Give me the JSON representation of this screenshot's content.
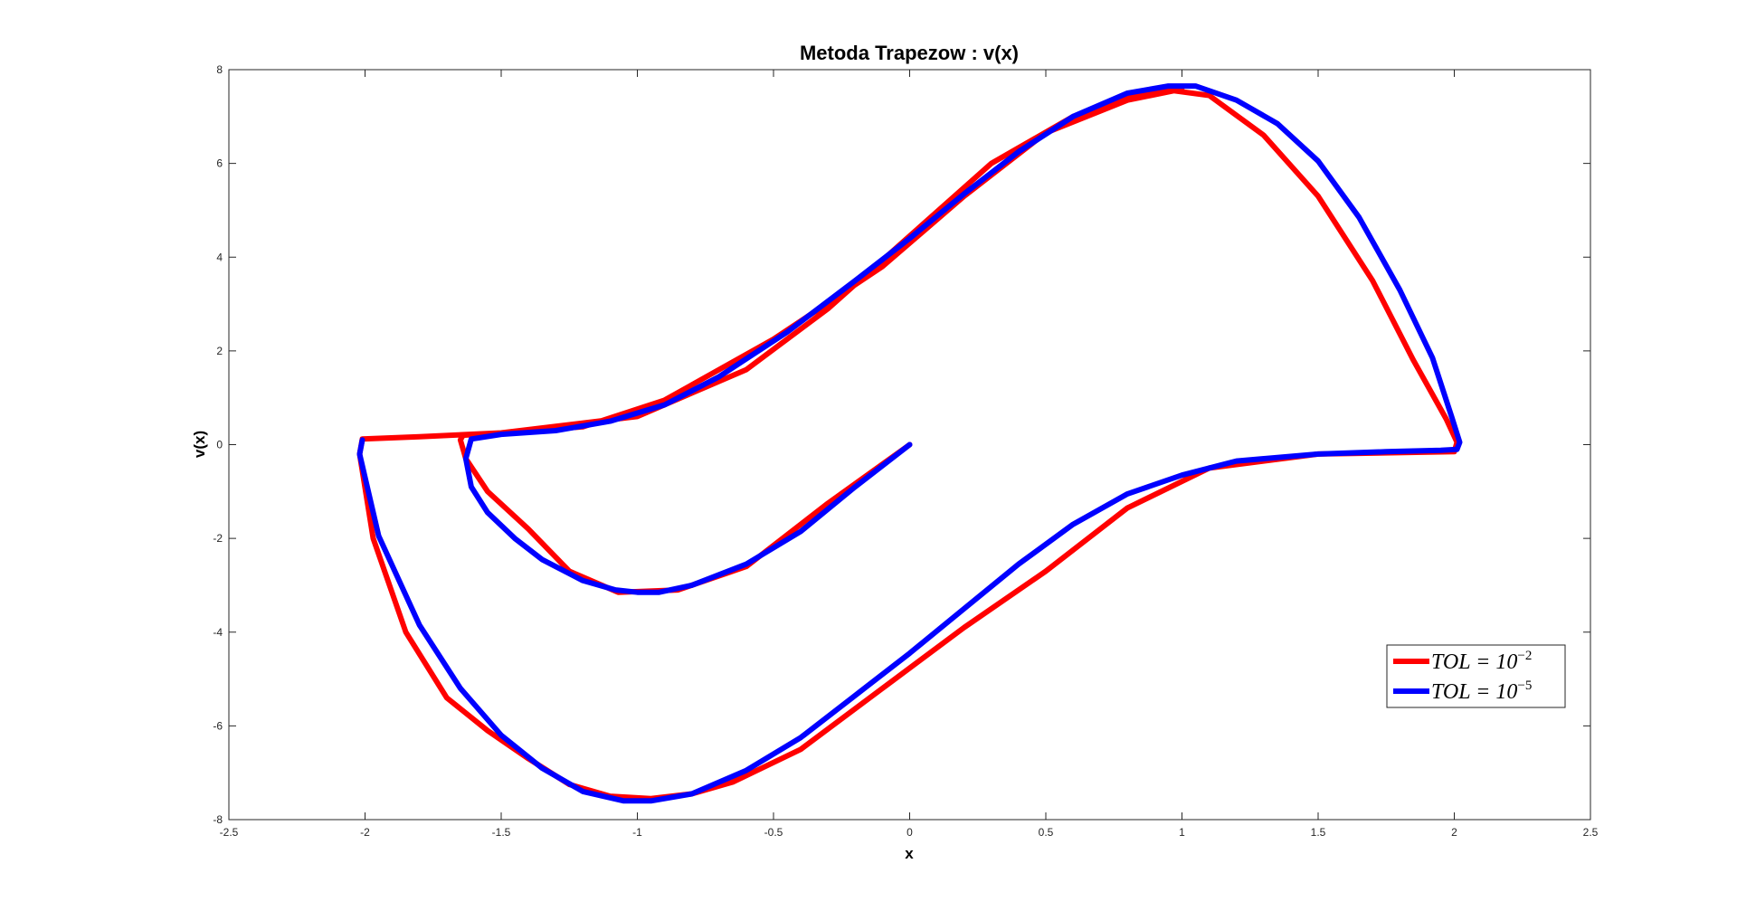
{
  "chart_data": {
    "type": "line",
    "title": "Metoda Trapezow : v(x)",
    "xlabel": "x",
    "ylabel": "v(x)",
    "xlim": [
      -2.5,
      2.5
    ],
    "ylim": [
      -8,
      8
    ],
    "xticks": [
      -2.5,
      -2,
      -1.5,
      -1,
      -0.5,
      0,
      0.5,
      1,
      1.5,
      2,
      2.5
    ],
    "xtick_labels": [
      "-2.5",
      "-2",
      "-1.5",
      "-1",
      "-0.5",
      "0",
      "0.5",
      "1",
      "1.5",
      "2",
      "2.5"
    ],
    "yticks": [
      -8,
      -6,
      -4,
      -2,
      0,
      2,
      4,
      6,
      8
    ],
    "ytick_labels": [
      "-8",
      "-6",
      "-4",
      "-2",
      "0",
      "2",
      "4",
      "6",
      "8"
    ],
    "grid": false,
    "legend_position": "bottom-right",
    "series": [
      {
        "name": "TOL = 10^-2",
        "legend_base": "TOL = 10",
        "legend_exp": "−2",
        "color": "#ff0000",
        "x": [
          0,
          -0.3,
          -0.6,
          -0.85,
          -1.07,
          -1.25,
          -1.4,
          -1.55,
          -1.63,
          -1.65,
          -1.64,
          -1.5,
          -1.2,
          -0.9,
          -0.5,
          -0.1,
          0.2,
          0.5,
          0.8,
          0.97,
          1.1,
          1.3,
          1.5,
          1.7,
          1.85,
          1.97,
          2.01,
          2.0,
          1.5,
          1.1,
          0.8,
          0.5,
          0.2,
          -0.1,
          -0.4,
          -0.65,
          -0.8,
          -0.95,
          -1.1,
          -1.25,
          -1.4,
          -1.55,
          -1.7,
          -1.85,
          -1.97,
          -2.02,
          -2.01,
          -1.8,
          -1.5,
          -1.0,
          -0.6,
          -0.3,
          0,
          0.3,
          0.6,
          0.8,
          1.0
        ],
        "y": [
          0,
          -1.25,
          -2.6,
          -3.1,
          -3.15,
          -2.7,
          -1.8,
          -1.0,
          -0.3,
          0.1,
          0.2,
          0.25,
          0.38,
          0.95,
          2.25,
          3.8,
          5.3,
          6.65,
          7.35,
          7.55,
          7.45,
          6.6,
          5.3,
          3.5,
          1.8,
          0.55,
          0.05,
          -0.15,
          -0.2,
          -0.5,
          -1.35,
          -2.7,
          -3.9,
          -5.2,
          -6.5,
          -7.2,
          -7.45,
          -7.55,
          -7.5,
          -7.25,
          -6.7,
          -6.1,
          -5.4,
          -4.0,
          -2.0,
          -0.2,
          0.12,
          0.17,
          0.25,
          0.6,
          1.6,
          2.9,
          4.45,
          6.0,
          7.0,
          7.4,
          7.6
        ]
      },
      {
        "name": "TOL = 10^-5",
        "legend_base": "TOL = 10",
        "legend_exp": "−5",
        "color": "#0000ff",
        "x": [
          0,
          -0.2,
          -0.4,
          -0.6,
          -0.8,
          -0.92,
          -1.0,
          -1.08,
          -1.2,
          -1.35,
          -1.45,
          -1.55,
          -1.61,
          -1.63,
          -1.61,
          -1.5,
          -1.3,
          -1.1,
          -0.9,
          -0.7,
          -0.45,
          -0.2,
          0,
          0.2,
          0.4,
          0.6,
          0.8,
          0.95,
          1.05,
          1.2,
          1.35,
          1.5,
          1.65,
          1.8,
          1.92,
          1.99,
          2.02,
          2.01,
          1.95,
          1.75,
          1.5,
          1.2,
          1.0,
          0.8,
          0.6,
          0.4,
          0.2,
          0,
          -0.2,
          -0.4,
          -0.6,
          -0.8,
          -0.95,
          -1.05,
          -1.2,
          -1.35,
          -1.5,
          -1.65,
          -1.8,
          -1.95,
          -2.02,
          -2.01
        ],
        "y": [
          0,
          -0.9,
          -1.85,
          -2.55,
          -3.0,
          -3.15,
          -3.15,
          -3.1,
          -2.9,
          -2.45,
          -2.0,
          -1.45,
          -0.9,
          -0.3,
          0.12,
          0.22,
          0.3,
          0.5,
          0.85,
          1.45,
          2.4,
          3.5,
          4.4,
          5.35,
          6.25,
          7.0,
          7.5,
          7.65,
          7.65,
          7.35,
          6.85,
          6.05,
          4.85,
          3.3,
          1.85,
          0.6,
          0.05,
          -0.1,
          -0.12,
          -0.15,
          -0.2,
          -0.35,
          -0.65,
          -1.05,
          -1.7,
          -2.55,
          -3.5,
          -4.45,
          -5.35,
          -6.25,
          -6.95,
          -7.45,
          -7.6,
          -7.6,
          -7.4,
          -6.9,
          -6.2,
          -5.2,
          -3.85,
          -1.95,
          -0.2,
          0.1
        ]
      }
    ]
  }
}
